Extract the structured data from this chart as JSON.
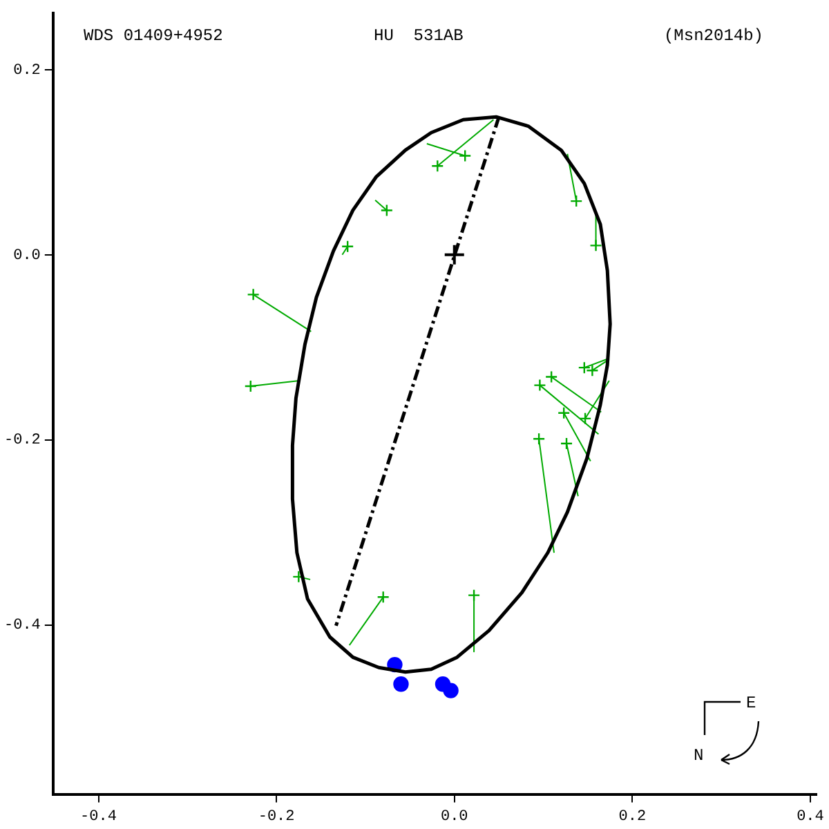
{
  "chart_data": {
    "type": "scatter",
    "xlim": [
      -0.451,
      0.407
    ],
    "ylim": [
      -0.583,
      0.261
    ],
    "xticks": [
      {
        "value": -0.4,
        "label": "-0.4"
      },
      {
        "value": -0.2,
        "label": "-0.2"
      },
      {
        "value": 0,
        "label": "0.0"
      },
      {
        "value": 0.2,
        "label": "0.2"
      },
      {
        "value": 0.4,
        "label": "0.4"
      }
    ],
    "yticks": [
      {
        "value": -0.4,
        "label": "-0.4"
      },
      {
        "value": -0.2,
        "label": "-0.2"
      },
      {
        "value": 0,
        "label": "0.0"
      },
      {
        "value": 0.2,
        "label": "0.2"
      }
    ],
    "grid": false,
    "legend": false,
    "annotations": [
      "WDS 01409+4952",
      "HU  531AB",
      "(Msn2014b)",
      "E",
      "N"
    ],
    "series": [
      {
        "type": "line",
        "color": "#000000",
        "marker": "none",
        "line_style": "dashed",
        "x": [
          0.05,
          -0.133
        ],
        "values": [
          0.149,
          -0.401
        ]
      },
      {
        "type": "line",
        "color": "#00aa00",
        "marker": "none",
        "line_style": "solid",
        "x": [
          0.012,
          -0.031,
          null,
          -0.019,
          0.044,
          null,
          0.137,
          0.127,
          null,
          0.159,
          0.159,
          null,
          -0.076,
          -0.089,
          null,
          -0.12,
          -0.126,
          null,
          -0.226,
          -0.161,
          null,
          -0.229,
          -0.174,
          null,
          0.146,
          0.174,
          null,
          0.155,
          0.174,
          null,
          0.109,
          0.165,
          null,
          0.096,
          0.162,
          null,
          0.123,
          0.153,
          null,
          0.147,
          0.174,
          null,
          0.095,
          0.112,
          null,
          0.126,
          0.139,
          null,
          -0.175,
          -0.162,
          null,
          -0.08,
          -0.118,
          null,
          0.022,
          0.022
        ],
        "values": [
          0.107,
          0.12,
          null,
          0.096,
          0.146,
          null,
          0.058,
          0.109,
          null,
          0.01,
          0.043,
          null,
          0.048,
          0.059,
          null,
          0.009,
          0.0,
          null,
          -0.043,
          -0.083,
          null,
          -0.142,
          -0.136,
          null,
          -0.122,
          -0.112,
          null,
          -0.125,
          -0.113,
          null,
          -0.132,
          -0.17,
          null,
          -0.141,
          -0.194,
          null,
          -0.171,
          -0.223,
          null,
          -0.177,
          -0.136,
          null,
          -0.199,
          -0.322,
          null,
          -0.204,
          -0.261,
          null,
          -0.348,
          -0.351,
          null,
          -0.37,
          -0.422,
          null,
          -0.368,
          -0.429
        ]
      },
      {
        "type": "scatter",
        "color": "#00aa00",
        "marker": "cross",
        "x": [
          0.012,
          -0.019,
          0.137,
          0.159,
          -0.076,
          -0.12,
          -0.226,
          -0.229,
          0.146,
          0.155,
          0.109,
          0.096,
          0.123,
          0.147,
          0.095,
          0.126,
          -0.175,
          -0.08,
          0.022
        ],
        "values": [
          0.107,
          0.096,
          0.058,
          0.01,
          0.048,
          0.009,
          -0.043,
          -0.142,
          -0.122,
          -0.125,
          -0.132,
          -0.141,
          -0.171,
          -0.177,
          -0.199,
          -0.204,
          -0.348,
          -0.37,
          -0.368
        ]
      },
      {
        "type": "scatter",
        "color": "#0000ff",
        "marker": "circle",
        "x": [
          -0.067,
          -0.06,
          -0.013,
          -0.004
        ],
        "values": [
          -0.443,
          -0.464,
          -0.464,
          -0.471
        ]
      },
      {
        "type": "scatter",
        "color": "#000000",
        "marker": "cross",
        "x": [
          0
        ],
        "values": [
          0
        ]
      }
    ]
  }
}
